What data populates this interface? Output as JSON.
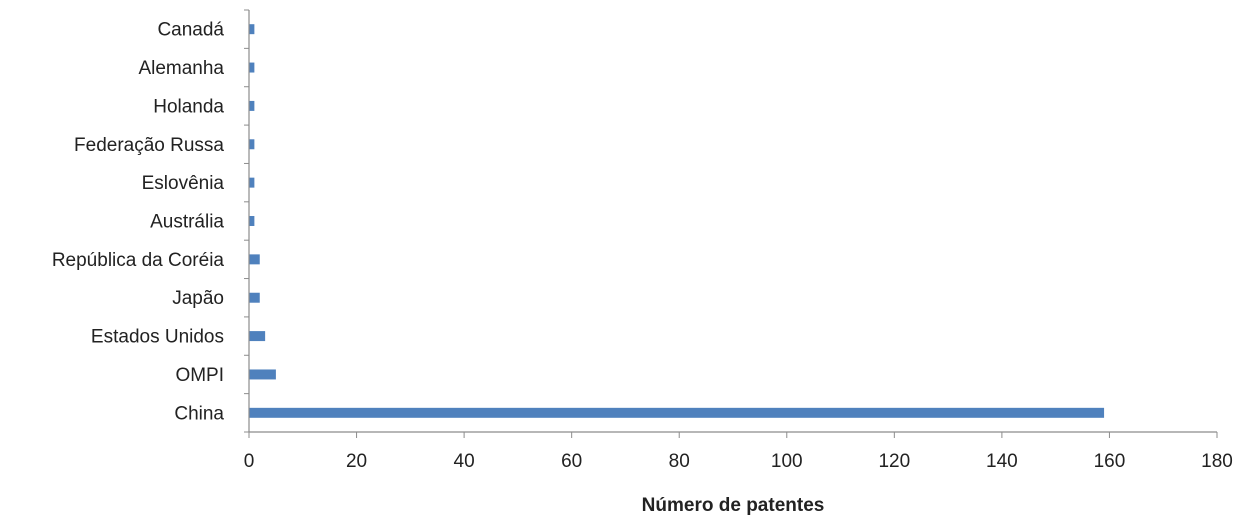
{
  "chart_data": {
    "type": "bar",
    "orientation": "horizontal",
    "categories": [
      "China",
      "OMPI",
      "Estados Unidos",
      "Japão",
      "República da Coréia",
      "Austrália",
      "Eslovênia",
      "Federação Russa",
      "Holanda",
      "Alemanha",
      "Canadá"
    ],
    "values": [
      159,
      5,
      3,
      2,
      2,
      1,
      1,
      1,
      1,
      1,
      1
    ],
    "xlabel": "Número de patentes",
    "ylabel": "",
    "xlim": [
      0,
      180
    ],
    "xticks": [
      0,
      20,
      40,
      60,
      80,
      100,
      120,
      140,
      160,
      180
    ],
    "grid": false,
    "legend": "none",
    "bar_color": "#4f81bd",
    "axis_color": "#8c8c8c"
  }
}
